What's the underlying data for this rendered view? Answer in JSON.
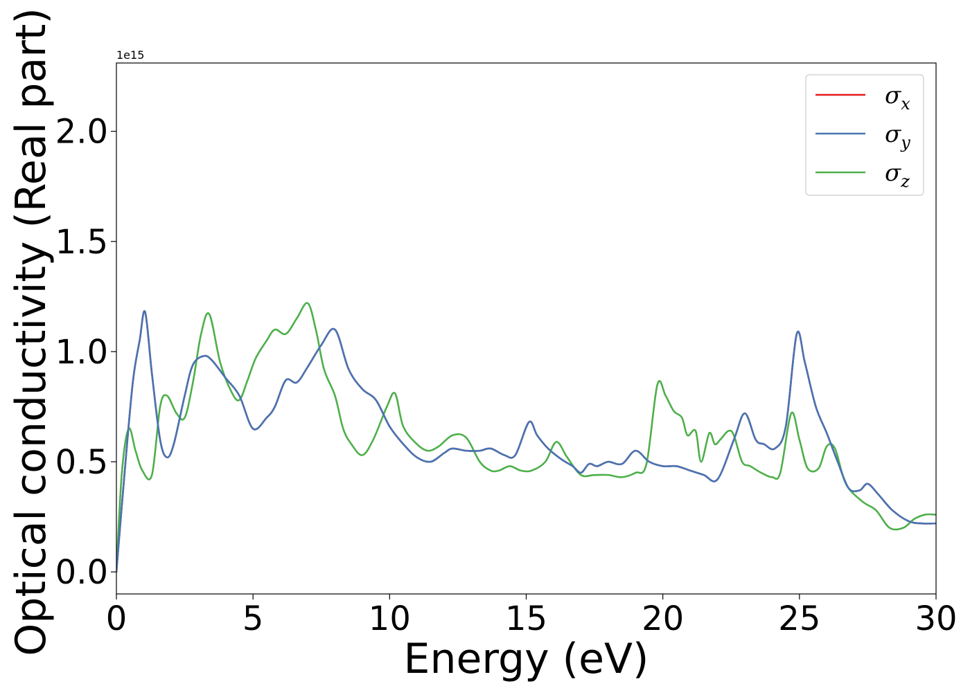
{
  "chart_data": {
    "type": "line",
    "xlabel": "Energy (eV)",
    "ylabel": "Optical conductivity (Real part)",
    "offset_text": "1e15",
    "xlim": [
      0,
      30
    ],
    "ylim": [
      -0.1,
      2.31
    ],
    "x_ticks": [
      0,
      5,
      10,
      15,
      20,
      25,
      30
    ],
    "x_tick_labels": [
      "0",
      "5",
      "10",
      "15",
      "20",
      "25",
      "30"
    ],
    "y_ticks": [
      0.0,
      0.5,
      1.0,
      1.5,
      2.0
    ],
    "y_tick_labels": [
      "0.0",
      "0.5",
      "1.0",
      "1.5",
      "2.0"
    ],
    "grid": false,
    "legend_position": "top-right",
    "series": [
      {
        "name": "σx",
        "symbol": "σ",
        "subscript": "x",
        "color": "#e41a1c",
        "x": [
          0,
          0.3,
          0.6,
          0.85,
          1.05,
          1.3,
          1.6,
          1.85,
          2.1,
          2.5,
          2.8,
          3.2,
          3.5,
          4.0,
          4.5,
          5.0,
          5.5,
          5.8,
          6.2,
          6.6,
          7.0,
          7.5,
          8.0,
          8.5,
          9.0,
          9.5,
          10.0,
          10.5,
          11.0,
          11.5,
          12.0,
          12.3,
          12.8,
          13.3,
          13.7,
          14.2,
          14.6,
          15.1,
          15.4,
          15.8,
          16.3,
          16.7,
          17.0,
          17.3,
          17.6,
          18.0,
          18.5,
          19.0,
          19.5,
          20.0,
          20.5,
          21.0,
          21.5,
          22.0,
          22.6,
          23.0,
          23.4,
          23.7,
          24.1,
          24.5,
          24.9,
          25.2,
          25.6,
          26.0,
          26.4,
          26.8,
          27.2,
          27.5,
          27.9,
          28.4,
          29.0,
          29.5,
          30.0
        ],
        "y": [
          0.0,
          0.45,
          0.86,
          1.05,
          1.18,
          0.9,
          0.6,
          0.52,
          0.58,
          0.8,
          0.94,
          0.98,
          0.96,
          0.88,
          0.8,
          0.65,
          0.7,
          0.75,
          0.87,
          0.86,
          0.93,
          1.03,
          1.1,
          0.92,
          0.83,
          0.78,
          0.66,
          0.58,
          0.52,
          0.5,
          0.54,
          0.56,
          0.55,
          0.55,
          0.56,
          0.53,
          0.53,
          0.68,
          0.62,
          0.56,
          0.51,
          0.48,
          0.45,
          0.49,
          0.48,
          0.5,
          0.49,
          0.55,
          0.5,
          0.48,
          0.48,
          0.46,
          0.44,
          0.42,
          0.6,
          0.72,
          0.6,
          0.58,
          0.56,
          0.66,
          1.08,
          0.95,
          0.75,
          0.63,
          0.5,
          0.38,
          0.37,
          0.4,
          0.35,
          0.28,
          0.23,
          0.22,
          0.22
        ]
      },
      {
        "name": "σy",
        "symbol": "σ",
        "subscript": "y",
        "color": "#4575b4",
        "x": [
          0,
          0.3,
          0.6,
          0.85,
          1.05,
          1.3,
          1.6,
          1.85,
          2.1,
          2.5,
          2.8,
          3.2,
          3.5,
          4.0,
          4.5,
          5.0,
          5.5,
          5.8,
          6.2,
          6.6,
          7.0,
          7.5,
          8.0,
          8.5,
          9.0,
          9.5,
          10.0,
          10.5,
          11.0,
          11.5,
          12.0,
          12.3,
          12.8,
          13.3,
          13.7,
          14.2,
          14.6,
          15.1,
          15.4,
          15.8,
          16.3,
          16.7,
          17.0,
          17.3,
          17.6,
          18.0,
          18.5,
          19.0,
          19.5,
          20.0,
          20.5,
          21.0,
          21.5,
          22.0,
          22.6,
          23.0,
          23.4,
          23.7,
          24.1,
          24.5,
          24.9,
          25.2,
          25.6,
          26.0,
          26.4,
          26.8,
          27.2,
          27.5,
          27.9,
          28.4,
          29.0,
          29.5,
          30.0
        ],
        "y": [
          0.0,
          0.45,
          0.86,
          1.05,
          1.18,
          0.9,
          0.6,
          0.52,
          0.58,
          0.8,
          0.94,
          0.98,
          0.96,
          0.88,
          0.8,
          0.65,
          0.7,
          0.75,
          0.87,
          0.86,
          0.93,
          1.03,
          1.1,
          0.92,
          0.83,
          0.78,
          0.66,
          0.58,
          0.52,
          0.5,
          0.54,
          0.56,
          0.55,
          0.55,
          0.56,
          0.53,
          0.53,
          0.68,
          0.62,
          0.56,
          0.51,
          0.48,
          0.45,
          0.49,
          0.48,
          0.5,
          0.49,
          0.55,
          0.5,
          0.48,
          0.48,
          0.46,
          0.44,
          0.42,
          0.6,
          0.72,
          0.6,
          0.58,
          0.56,
          0.66,
          1.08,
          0.95,
          0.75,
          0.63,
          0.5,
          0.38,
          0.37,
          0.4,
          0.35,
          0.28,
          0.23,
          0.22,
          0.22
        ]
      },
      {
        "name": "σz",
        "symbol": "σ",
        "subscript": "z",
        "color": "#4daf4a",
        "x": [
          0,
          0.2,
          0.45,
          0.7,
          0.95,
          1.3,
          1.6,
          1.85,
          2.2,
          2.5,
          2.8,
          3.1,
          3.4,
          3.8,
          4.2,
          4.5,
          4.8,
          5.1,
          5.5,
          5.8,
          6.2,
          6.6,
          7.0,
          7.3,
          7.6,
          8.0,
          8.3,
          8.6,
          9.0,
          9.4,
          9.9,
          10.2,
          10.5,
          11.0,
          11.4,
          11.8,
          12.3,
          12.8,
          13.3,
          13.7,
          14.0,
          14.4,
          14.8,
          15.2,
          15.7,
          16.1,
          16.5,
          17.0,
          17.5,
          18.0,
          18.5,
          19.0,
          19.4,
          19.8,
          20.1,
          20.4,
          20.7,
          20.9,
          21.2,
          21.4,
          21.7,
          21.9,
          22.1,
          22.4,
          22.6,
          22.9,
          23.2,
          23.6,
          24.0,
          24.3,
          24.7,
          25.0,
          25.3,
          25.7,
          26.0,
          26.3,
          26.7,
          27.3,
          27.8,
          28.3,
          28.8,
          29.2,
          29.6,
          30.0
        ],
        "y": [
          0.0,
          0.45,
          0.65,
          0.55,
          0.46,
          0.44,
          0.75,
          0.8,
          0.72,
          0.7,
          0.86,
          1.08,
          1.17,
          0.95,
          0.82,
          0.78,
          0.87,
          0.97,
          1.05,
          1.1,
          1.08,
          1.15,
          1.22,
          1.1,
          0.92,
          0.8,
          0.65,
          0.58,
          0.53,
          0.6,
          0.75,
          0.81,
          0.66,
          0.58,
          0.55,
          0.57,
          0.62,
          0.61,
          0.5,
          0.46,
          0.46,
          0.48,
          0.46,
          0.46,
          0.5,
          0.59,
          0.52,
          0.44,
          0.44,
          0.44,
          0.43,
          0.45,
          0.49,
          0.85,
          0.8,
          0.73,
          0.7,
          0.62,
          0.64,
          0.5,
          0.63,
          0.58,
          0.6,
          0.64,
          0.62,
          0.5,
          0.48,
          0.45,
          0.43,
          0.45,
          0.72,
          0.6,
          0.47,
          0.47,
          0.57,
          0.56,
          0.4,
          0.32,
          0.28,
          0.2,
          0.2,
          0.24,
          0.26,
          0.26
        ]
      }
    ]
  }
}
